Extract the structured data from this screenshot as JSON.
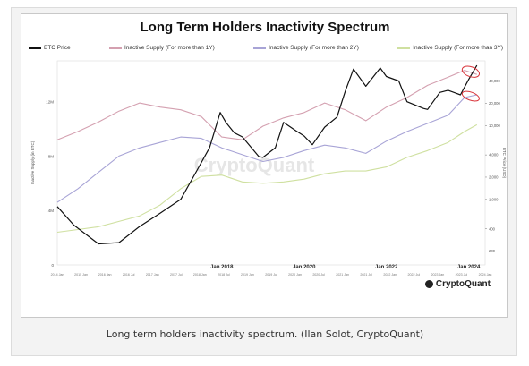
{
  "caption": "Long term holders inactivity spectrum. (Ilan Solot, CryptoQuant)",
  "chart_data": {
    "type": "line",
    "title": "Long Term Holders Inactivity Spectrum",
    "watermark": "CryptoQuant",
    "ylabel_left": "Inactive Supply (in BTC)",
    "ylabel_right": "BTC Price (USD)",
    "y_left_ticks": [
      "0",
      "4M",
      "8M",
      "12M"
    ],
    "y_right_ticks": [
      "40,000",
      "20,000",
      "10,000",
      "4,000",
      "2,000",
      "1,000",
      "400",
      "200"
    ],
    "x_major_labels": [
      "Jan 2018",
      "Jan 2020",
      "Jan 2022",
      "Jan 2024"
    ],
    "x_tick_labels": [
      "2014 Jan",
      "2015 Jan",
      "2016 Jan",
      "2016 Jul",
      "2017 Jan",
      "2017 Jul",
      "2018 Jan",
      "2018 Jul",
      "2019 Jan",
      "2019 Jul",
      "2020 Jan",
      "2020 Jul",
      "2021 Jan",
      "2021 Jul",
      "2022 Jan",
      "2022 Jul",
      "2023 Jan",
      "2023 Jul",
      "2024 Jan"
    ],
    "x_range": [
      2014.0,
      2024.4
    ],
    "y_left_range": [
      0,
      15
    ],
    "log_right_axis": true,
    "y_right_range": [
      130,
      75000
    ],
    "legend_position": "top",
    "colors": {
      "btc": "#111111",
      "y1": "#d4a0b0",
      "y2": "#a8a4d6",
      "y3": "#cfe0a0"
    },
    "series": [
      {
        "name": "BTC Price",
        "axis": "right",
        "x": [
          2014.0,
          2014.4,
          2015.0,
          2015.5,
          2016.0,
          2016.5,
          2017.0,
          2017.4,
          2017.7,
          2017.96,
          2018.1,
          2018.3,
          2018.5,
          2018.9,
          2019.0,
          2019.3,
          2019.5,
          2019.8,
          2020.0,
          2020.2,
          2020.5,
          2020.8,
          2021.0,
          2021.2,
          2021.5,
          2021.85,
          2022.0,
          2022.3,
          2022.5,
          2022.9,
          2023.0,
          2023.3,
          2023.5,
          2023.8,
          2024.0,
          2024.2
        ],
        "values": [
          800,
          450,
          250,
          260,
          430,
          650,
          1000,
          2500,
          5000,
          15000,
          11000,
          8000,
          7000,
          3800,
          3700,
          5000,
          11000,
          8500,
          7200,
          5500,
          9500,
          13000,
          29000,
          58000,
          34000,
          60000,
          46000,
          40000,
          21000,
          17000,
          16500,
          28000,
          30000,
          26000,
          42000,
          65000
        ]
      },
      {
        "name": "Inactive Supply (For more than 1Y)",
        "axis": "left",
        "x": [
          2014.0,
          2014.5,
          2015.0,
          2015.5,
          2016.0,
          2016.5,
          2017.0,
          2017.5,
          2018.0,
          2018.5,
          2019.0,
          2019.5,
          2020.0,
          2020.5,
          2021.0,
          2021.5,
          2022.0,
          2022.5,
          2023.0,
          2023.5,
          2023.9,
          2024.2
        ],
        "values": [
          9.2,
          9.8,
          10.5,
          11.3,
          11.9,
          11.6,
          11.4,
          10.9,
          9.4,
          9.2,
          10.2,
          10.8,
          11.2,
          11.9,
          11.4,
          10.6,
          11.6,
          12.3,
          13.2,
          13.8,
          14.3,
          14.0
        ]
      },
      {
        "name": "Inactive Supply (For more than 2Y)",
        "axis": "left",
        "x": [
          2014.0,
          2014.5,
          2015.0,
          2015.5,
          2016.0,
          2016.5,
          2017.0,
          2017.5,
          2018.0,
          2018.5,
          2019.0,
          2019.5,
          2020.0,
          2020.5,
          2021.0,
          2021.5,
          2022.0,
          2022.5,
          2023.0,
          2023.5,
          2023.9,
          2024.2
        ],
        "values": [
          4.6,
          5.6,
          6.8,
          8.0,
          8.6,
          9.0,
          9.4,
          9.3,
          8.6,
          8.1,
          7.6,
          7.9,
          8.4,
          8.8,
          8.6,
          8.2,
          9.1,
          9.8,
          10.4,
          11.0,
          12.3,
          12.5
        ]
      },
      {
        "name": "Inactive Supply (For more than 3Y)",
        "axis": "left",
        "x": [
          2014.0,
          2014.5,
          2015.0,
          2015.5,
          2016.0,
          2016.5,
          2017.0,
          2017.5,
          2018.0,
          2018.5,
          2019.0,
          2019.5,
          2020.0,
          2020.5,
          2021.0,
          2021.5,
          2022.0,
          2022.5,
          2023.0,
          2023.5,
          2023.9,
          2024.2
        ],
        "values": [
          2.4,
          2.6,
          2.8,
          3.2,
          3.6,
          4.4,
          5.6,
          6.5,
          6.6,
          6.1,
          6.0,
          6.1,
          6.3,
          6.7,
          6.9,
          6.9,
          7.2,
          7.9,
          8.4,
          9.0,
          9.8,
          10.3
        ]
      }
    ]
  }
}
